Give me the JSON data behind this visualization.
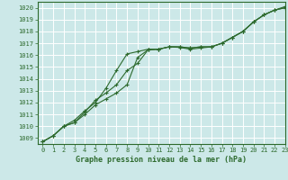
{
  "title": "Graphe pression niveau de la mer (hPa)",
  "bg_color": "#cce8e8",
  "plot_bg_color": "#d8eeee",
  "grid_color": "#ffffff",
  "line_color": "#2d6a2d",
  "spine_color": "#2d6a2d",
  "xlim": [
    -0.5,
    23
  ],
  "ylim": [
    1008.5,
    1020.5
  ],
  "yticks": [
    1009,
    1010,
    1011,
    1012,
    1013,
    1014,
    1015,
    1016,
    1017,
    1018,
    1019,
    1020
  ],
  "xticks": [
    0,
    1,
    2,
    3,
    4,
    5,
    6,
    7,
    8,
    9,
    10,
    11,
    12,
    13,
    14,
    15,
    16,
    17,
    18,
    19,
    20,
    21,
    22,
    23
  ],
  "series": [
    [
      1008.7,
      1009.2,
      1010.0,
      1010.3,
      1011.0,
      1011.8,
      1012.3,
      1012.8,
      1013.5,
      1015.8,
      1016.45,
      1016.5,
      1016.7,
      1016.7,
      1016.6,
      1016.7,
      1016.7,
      1017.0,
      1017.5,
      1018.0,
      1018.8,
      1019.4,
      1019.8,
      1020.0
    ],
    [
      1008.7,
      1009.2,
      1010.0,
      1010.3,
      1011.2,
      1012.2,
      1012.8,
      1013.5,
      1014.7,
      1015.3,
      1016.45,
      1016.5,
      1016.7,
      1016.65,
      1016.5,
      1016.6,
      1016.7,
      1017.0,
      1017.5,
      1018.0,
      1018.8,
      1019.4,
      1019.8,
      1020.0
    ],
    [
      1008.7,
      1009.2,
      1010.0,
      1010.5,
      1011.3,
      1012.0,
      1013.2,
      1014.7,
      1016.1,
      1016.3,
      1016.5,
      1016.5,
      1016.7,
      1016.7,
      1016.6,
      1016.7,
      1016.7,
      1017.0,
      1017.5,
      1018.0,
      1018.8,
      1019.4,
      1019.8,
      1020.1
    ]
  ],
  "ylabel_fontsize": 5.5,
  "xlabel_fontsize": 6.0,
  "tick_fontsize": 5.0
}
